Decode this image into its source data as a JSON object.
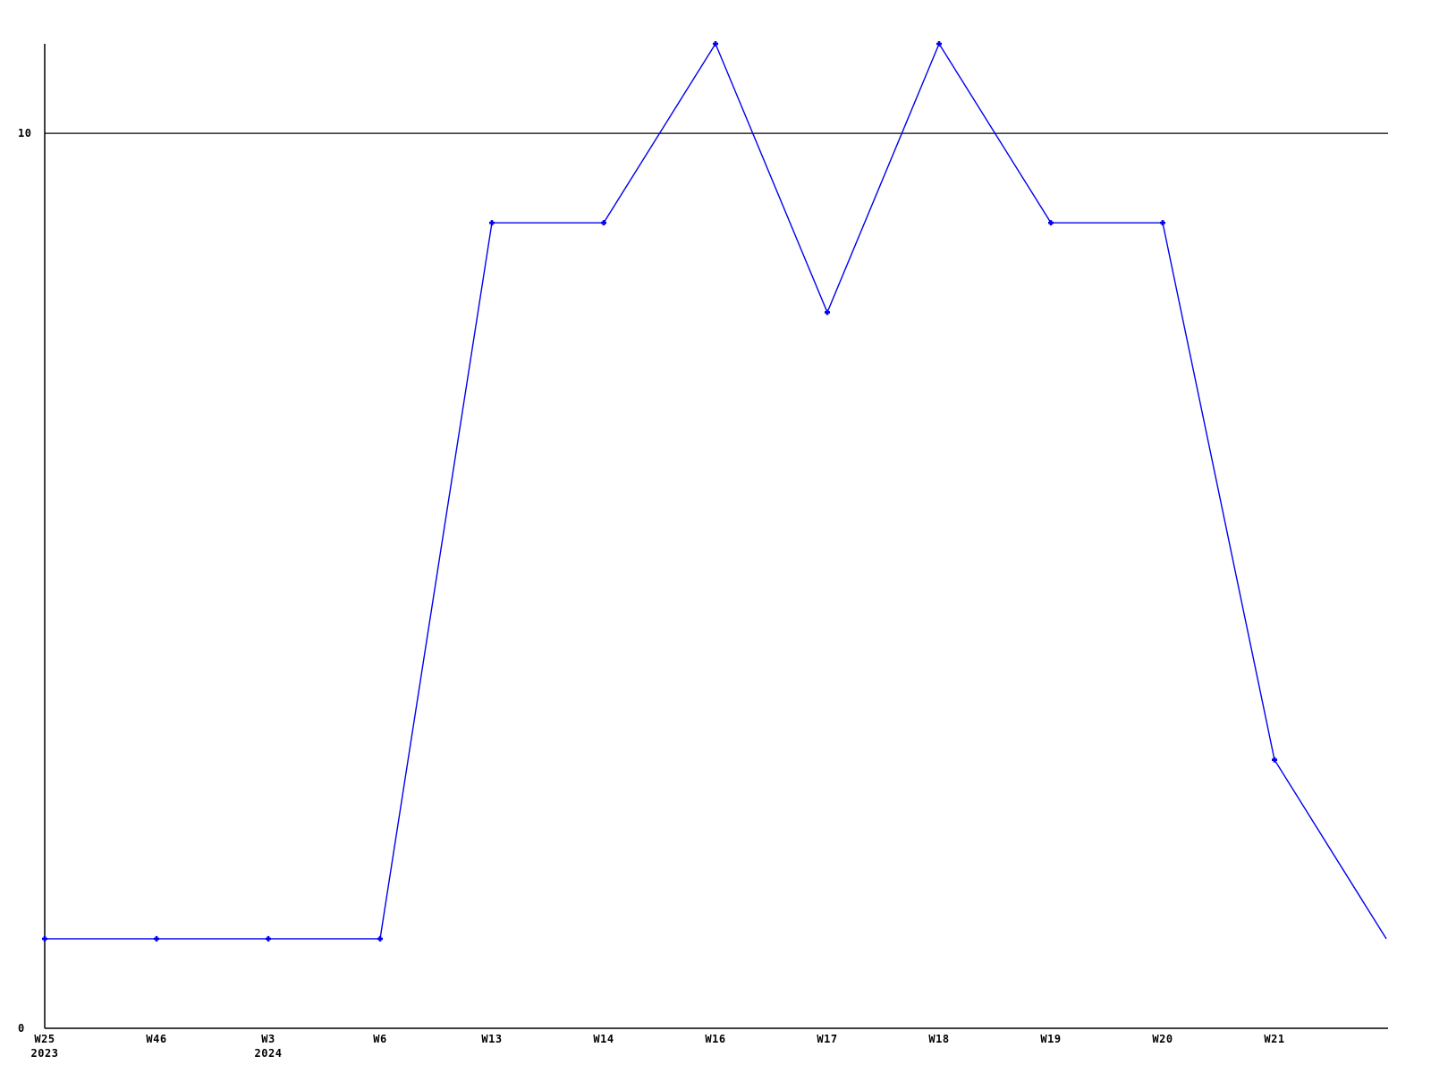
{
  "page": {
    "background_color": "#ffffff"
  },
  "chart_data": {
    "type": "line",
    "title": "",
    "xlabel": "",
    "ylabel": "",
    "legend": "none",
    "grid": "single horizontal reference line at y=10",
    "ylim": [
      0,
      11
    ],
    "yticks": [
      {
        "value": 10,
        "label": "10",
        "gridline": true
      },
      {
        "value": 0,
        "label": "0",
        "gridline": false
      }
    ],
    "line_color": "#0000ee",
    "axis_color": "#000000",
    "marker_style": "small plus",
    "points": [
      {
        "x_label": "W25",
        "year_label": "2023",
        "value": 1,
        "marker": true
      },
      {
        "x_label": "W46",
        "year_label": "",
        "value": 1,
        "marker": true
      },
      {
        "x_label": "W3",
        "year_label": "2024",
        "value": 1,
        "marker": true
      },
      {
        "x_label": "W6",
        "year_label": "",
        "value": 1,
        "marker": true
      },
      {
        "x_label": "W13",
        "year_label": "",
        "value": 9,
        "marker": true
      },
      {
        "x_label": "W14",
        "year_label": "",
        "value": 9,
        "marker": true
      },
      {
        "x_label": "W16",
        "year_label": "",
        "value": 11,
        "marker": true
      },
      {
        "x_label": "W17",
        "year_label": "",
        "value": 8,
        "marker": true
      },
      {
        "x_label": "W18",
        "year_label": "",
        "value": 11,
        "marker": true
      },
      {
        "x_label": "W19",
        "year_label": "",
        "value": 9,
        "marker": true
      },
      {
        "x_label": "W20",
        "year_label": "",
        "value": 9,
        "marker": true
      },
      {
        "x_label": "W21",
        "year_label": "",
        "value": 3,
        "marker": true
      },
      {
        "x_label": "",
        "year_label": "",
        "value": 1,
        "marker": false
      }
    ]
  }
}
